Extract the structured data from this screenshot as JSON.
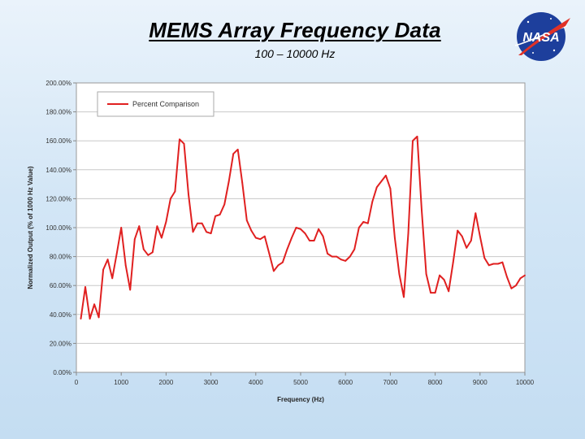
{
  "slide": {
    "title": "MEMS Array Frequency Data",
    "subtitle": "100 – 10000 Hz"
  },
  "logo": {
    "icon": "nasa-meatball-logo",
    "text": "NASA",
    "colors": {
      "blue": "#1d3f9c",
      "red": "#e03127",
      "white": "#ffffff"
    }
  },
  "chart_data": {
    "type": "line",
    "title": "",
    "xlabel": "Frequency (Hz)",
    "ylabel": "Normalized Output (% of 1000 Hz Value)",
    "xlim": [
      0,
      10000
    ],
    "ylim": [
      0,
      200
    ],
    "x_ticks": [
      "0",
      "1000",
      "2000",
      "3000",
      "4000",
      "5000",
      "6000",
      "7000",
      "8000",
      "9000",
      "10000"
    ],
    "y_ticks": [
      "0.00%",
      "20.00%",
      "40.00%",
      "60.00%",
      "80.00%",
      "100.00%",
      "120.00%",
      "140.00%",
      "160.00%",
      "180.00%",
      "200.00%"
    ],
    "grid": true,
    "legend_position": "top-left",
    "series": [
      {
        "name": "Percent Comparison",
        "color": "#e02020",
        "x": [
          100,
          200,
          300,
          400,
          500,
          600,
          700,
          800,
          900,
          1000,
          1100,
          1200,
          1300,
          1400,
          1500,
          1600,
          1700,
          1800,
          1900,
          2000,
          2100,
          2200,
          2300,
          2400,
          2500,
          2600,
          2700,
          2800,
          2900,
          3000,
          3100,
          3200,
          3300,
          3400,
          3500,
          3600,
          3700,
          3800,
          3900,
          4000,
          4100,
          4200,
          4300,
          4400,
          4500,
          4600,
          4700,
          4800,
          4900,
          5000,
          5100,
          5200,
          5300,
          5400,
          5500,
          5600,
          5700,
          5800,
          5900,
          6000,
          6100,
          6200,
          6300,
          6400,
          6500,
          6600,
          6700,
          6800,
          6900,
          7000,
          7100,
          7200,
          7300,
          7400,
          7500,
          7600,
          7700,
          7800,
          7900,
          8000,
          8100,
          8200,
          8300,
          8400,
          8500,
          8600,
          8700,
          8800,
          8900,
          9000,
          9100,
          9200,
          9300,
          9400,
          9500,
          9600,
          9700,
          9800,
          9900,
          10000
        ],
        "values": [
          37,
          59,
          37,
          47,
          38,
          71,
          78,
          65,
          82,
          100,
          74,
          57,
          92,
          101,
          85,
          81,
          83,
          101,
          93,
          104,
          120,
          125,
          161,
          158,
          123,
          97,
          103,
          103,
          97,
          96,
          108,
          109,
          116,
          132,
          151,
          154,
          131,
          105,
          98,
          93,
          92,
          94,
          82,
          70,
          74,
          76,
          85,
          93,
          100,
          99,
          96,
          91,
          91,
          99,
          94,
          82,
          80,
          80,
          78,
          77,
          80,
          85,
          100,
          104,
          103,
          118,
          128,
          132,
          136,
          127,
          93,
          68,
          52,
          96,
          160,
          163,
          112,
          68,
          55,
          55,
          67,
          64,
          56,
          76,
          98,
          94,
          86,
          91,
          110,
          94,
          79,
          74,
          75,
          75,
          76,
          66,
          58,
          60,
          65,
          67
        ]
      }
    ]
  }
}
